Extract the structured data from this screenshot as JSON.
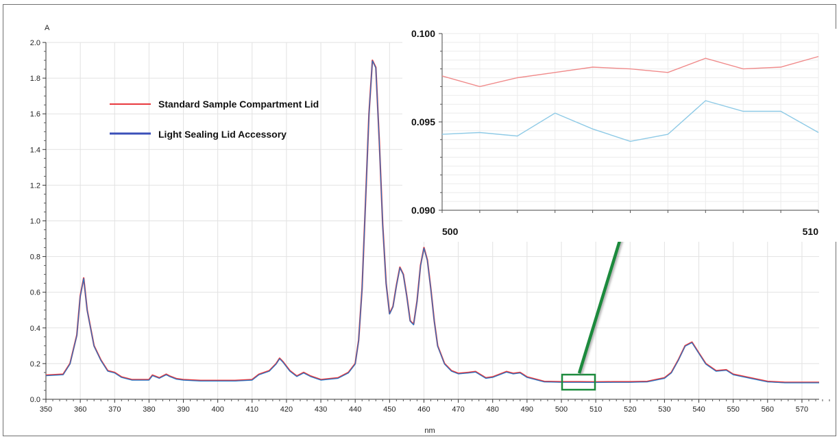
{
  "colors": {
    "series_main": "#1f77c9",
    "series_red": "#e8383d",
    "series_blue": "#3a4fb8",
    "inset_red": "#f08a8a",
    "inset_blue": "#8ecae6",
    "grid": "#e2e2e2",
    "callout": "#1b8a3c"
  },
  "chart_data": [
    {
      "type": "line",
      "title": "",
      "xlabel": "nm",
      "ylabel": "A",
      "xlim": [
        350,
        575
      ],
      "ylim": [
        0.0,
        2.0
      ],
      "x_ticks": [
        "350",
        "360",
        "370",
        "380",
        "390",
        "400",
        "410",
        "420",
        "430",
        "440",
        "450",
        "460",
        "470",
        "480",
        "490",
        "500",
        "510",
        "520",
        "530",
        "540",
        "550",
        "560",
        "570"
      ],
      "y_ticks": [
        "0.0",
        "0.2",
        "0.4",
        "0.6",
        "0.8",
        "1.0",
        "1.2",
        "1.4",
        "1.6",
        "1.8",
        "2.0"
      ],
      "grid": true,
      "legend_position": "top-left",
      "series": [
        {
          "name": "Standard Sample Compartment Lid",
          "x": [
            350,
            355,
            357,
            359,
            360,
            361,
            362,
            364,
            366,
            368,
            370,
            372,
            375,
            380,
            381,
            383,
            385,
            386,
            388,
            390,
            395,
            400,
            405,
            410,
            412,
            415,
            417,
            418,
            419,
            421,
            423,
            425,
            427,
            430,
            435,
            438,
            440,
            441,
            442,
            443,
            444,
            445,
            446,
            447,
            448,
            449,
            450,
            451,
            452,
            453,
            454,
            455,
            456,
            457,
            458,
            459,
            460,
            461,
            462,
            463,
            464,
            466,
            468,
            470,
            473,
            475,
            478,
            480,
            484,
            486,
            488,
            490,
            495,
            500,
            505,
            510,
            515,
            520,
            525,
            530,
            532,
            534,
            536,
            538,
            540,
            542,
            545,
            548,
            550,
            555,
            560,
            565,
            570,
            575
          ],
          "y": [
            0.135,
            0.14,
            0.2,
            0.36,
            0.58,
            0.68,
            0.5,
            0.3,
            0.22,
            0.16,
            0.15,
            0.125,
            0.11,
            0.11,
            0.135,
            0.12,
            0.14,
            0.13,
            0.115,
            0.11,
            0.105,
            0.105,
            0.105,
            0.11,
            0.14,
            0.16,
            0.2,
            0.23,
            0.21,
            0.16,
            0.13,
            0.15,
            0.13,
            0.11,
            0.12,
            0.15,
            0.2,
            0.33,
            0.62,
            1.1,
            1.6,
            1.9,
            1.86,
            1.45,
            0.98,
            0.65,
            0.48,
            0.52,
            0.64,
            0.74,
            0.7,
            0.58,
            0.44,
            0.42,
            0.55,
            0.75,
            0.85,
            0.78,
            0.62,
            0.44,
            0.3,
            0.2,
            0.16,
            0.145,
            0.15,
            0.155,
            0.12,
            0.125,
            0.155,
            0.145,
            0.15,
            0.125,
            0.1,
            0.098,
            0.098,
            0.097,
            0.098,
            0.098,
            0.1,
            0.12,
            0.15,
            0.22,
            0.3,
            0.32,
            0.26,
            0.2,
            0.16,
            0.165,
            0.14,
            0.12,
            0.1,
            0.095,
            0.095,
            0.095
          ]
        },
        {
          "name": "Light Sealing Lid Accessory",
          "x": [
            350,
            355,
            357,
            359,
            360,
            361,
            362,
            364,
            366,
            368,
            370,
            372,
            375,
            380,
            381,
            383,
            385,
            386,
            388,
            390,
            395,
            400,
            405,
            410,
            412,
            415,
            417,
            418,
            419,
            421,
            423,
            425,
            427,
            430,
            435,
            438,
            440,
            441,
            442,
            443,
            444,
            445,
            446,
            447,
            448,
            449,
            450,
            451,
            452,
            453,
            454,
            455,
            456,
            457,
            458,
            459,
            460,
            461,
            462,
            463,
            464,
            466,
            468,
            470,
            473,
            475,
            478,
            480,
            484,
            486,
            488,
            490,
            495,
            500,
            505,
            510,
            515,
            520,
            525,
            530,
            532,
            534,
            536,
            538,
            540,
            542,
            545,
            548,
            550,
            555,
            560,
            565,
            570,
            575
          ],
          "y": [
            0.132,
            0.137,
            0.197,
            0.357,
            0.577,
            0.677,
            0.497,
            0.297,
            0.217,
            0.157,
            0.147,
            0.122,
            0.107,
            0.107,
            0.132,
            0.117,
            0.137,
            0.127,
            0.112,
            0.107,
            0.102,
            0.102,
            0.102,
            0.107,
            0.137,
            0.157,
            0.197,
            0.227,
            0.207,
            0.157,
            0.127,
            0.147,
            0.127,
            0.107,
            0.117,
            0.147,
            0.197,
            0.327,
            0.617,
            1.097,
            1.597,
            1.897,
            1.857,
            1.447,
            0.977,
            0.647,
            0.477,
            0.517,
            0.637,
            0.737,
            0.697,
            0.577,
            0.437,
            0.417,
            0.547,
            0.747,
            0.847,
            0.777,
            0.617,
            0.437,
            0.297,
            0.197,
            0.157,
            0.142,
            0.147,
            0.152,
            0.117,
            0.122,
            0.152,
            0.142,
            0.147,
            0.122,
            0.097,
            0.095,
            0.095,
            0.094,
            0.095,
            0.095,
            0.097,
            0.117,
            0.147,
            0.217,
            0.297,
            0.317,
            0.257,
            0.197,
            0.157,
            0.162,
            0.137,
            0.117,
            0.097,
            0.092,
            0.092,
            0.092
          ]
        }
      ]
    },
    {
      "type": "line",
      "title": "",
      "xlabel": "",
      "ylabel": "",
      "xlim": [
        500,
        510
      ],
      "ylim": [
        0.09,
        0.1
      ],
      "x_ticks": [
        "500",
        "510"
      ],
      "y_ticks": [
        "0.090",
        "0.095",
        "0.100"
      ],
      "grid": true,
      "series": [
        {
          "name": "Standard Sample Compartment Lid",
          "x": [
            500,
            501,
            502,
            503,
            504,
            505,
            506,
            507,
            508,
            509,
            510
          ],
          "y": [
            0.0976,
            0.097,
            0.0975,
            0.0978,
            0.0981,
            0.098,
            0.0978,
            0.0986,
            0.098,
            0.0981,
            0.0987
          ]
        },
        {
          "name": "Light Sealing Lid Accessory",
          "x": [
            500,
            501,
            502,
            503,
            504,
            505,
            506,
            507,
            508,
            509,
            510
          ],
          "y": [
            0.0943,
            0.0944,
            0.0942,
            0.0955,
            0.0946,
            0.0939,
            0.0943,
            0.0962,
            0.0956,
            0.0956,
            0.0944
          ]
        }
      ]
    }
  ]
}
